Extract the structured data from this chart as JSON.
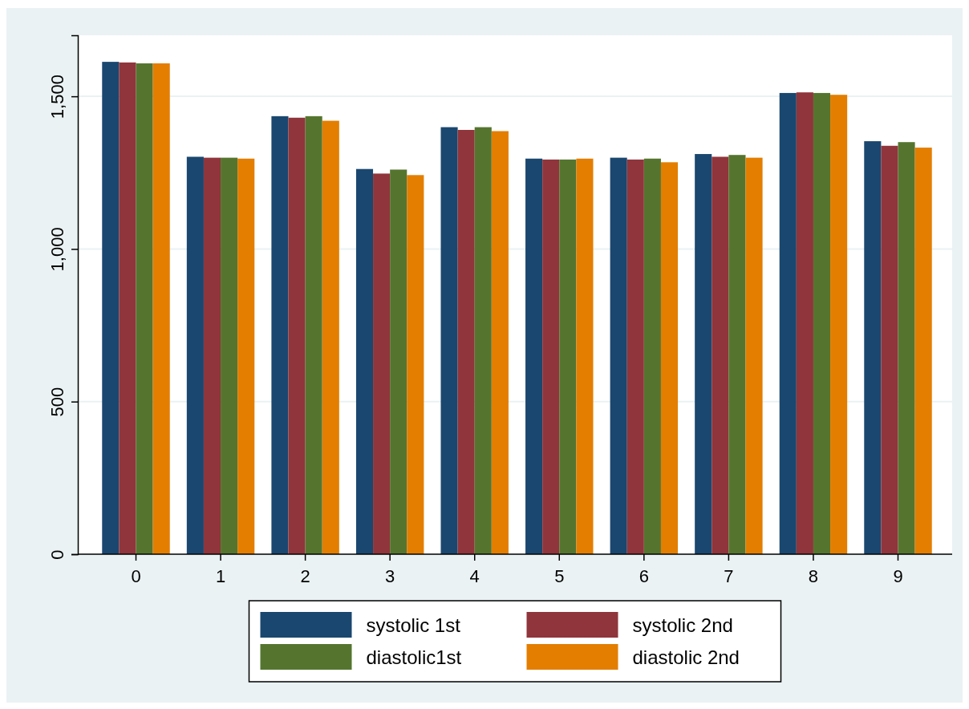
{
  "chart_data": {
    "type": "bar",
    "categories": [
      "0",
      "1",
      "2",
      "3",
      "4",
      "5",
      "6",
      "7",
      "8",
      "9"
    ],
    "series": [
      {
        "name": "systolic 1st",
        "color": "#1a476f",
        "values": [
          1613,
          1302,
          1435,
          1262,
          1399,
          1296,
          1299,
          1311,
          1511,
          1353
        ]
      },
      {
        "name": "systolic 2nd",
        "color": "#90353b",
        "values": [
          1611,
          1299,
          1430,
          1247,
          1390,
          1293,
          1293,
          1302,
          1513,
          1338
        ]
      },
      {
        "name": "diastolic1st",
        "color": "#55752f",
        "values": [
          1608,
          1299,
          1435,
          1260,
          1399,
          1293,
          1296,
          1308,
          1511,
          1350
        ]
      },
      {
        "name": "diastolic 2nd",
        "color": "#e37e00",
        "values": [
          1608,
          1296,
          1420,
          1242,
          1386,
          1296,
          1284,
          1299,
          1505,
          1332
        ]
      }
    ],
    "ylim": [
      0,
      1700
    ],
    "yticks": [
      0,
      {
        "value": 500,
        "label": "500"
      },
      {
        "value": 1000,
        "label": "1,000"
      },
      {
        "value": 1500,
        "label": "1,500"
      }
    ],
    "grid": "y",
    "legend": "bottom"
  }
}
